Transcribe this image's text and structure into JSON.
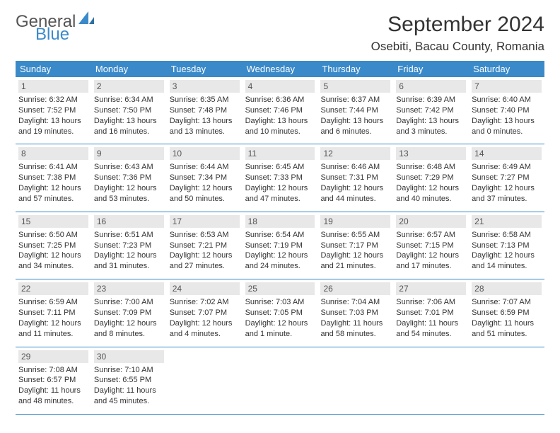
{
  "logo": {
    "text_general": "General",
    "text_blue": "Blue"
  },
  "title": {
    "month": "September 2024",
    "location": "Osebiti, Bacau County, Romania"
  },
  "colors": {
    "header_bg": "#3a8ac9",
    "daynum_bg": "#e8e8e8",
    "text": "#333333"
  },
  "weekdays": [
    "Sunday",
    "Monday",
    "Tuesday",
    "Wednesday",
    "Thursday",
    "Friday",
    "Saturday"
  ],
  "weeks": [
    [
      {
        "n": "1",
        "sr": "Sunrise: 6:32 AM",
        "ss": "Sunset: 7:52 PM",
        "d1": "Daylight: 13 hours",
        "d2": "and 19 minutes."
      },
      {
        "n": "2",
        "sr": "Sunrise: 6:34 AM",
        "ss": "Sunset: 7:50 PM",
        "d1": "Daylight: 13 hours",
        "d2": "and 16 minutes."
      },
      {
        "n": "3",
        "sr": "Sunrise: 6:35 AM",
        "ss": "Sunset: 7:48 PM",
        "d1": "Daylight: 13 hours",
        "d2": "and 13 minutes."
      },
      {
        "n": "4",
        "sr": "Sunrise: 6:36 AM",
        "ss": "Sunset: 7:46 PM",
        "d1": "Daylight: 13 hours",
        "d2": "and 10 minutes."
      },
      {
        "n": "5",
        "sr": "Sunrise: 6:37 AM",
        "ss": "Sunset: 7:44 PM",
        "d1": "Daylight: 13 hours",
        "d2": "and 6 minutes."
      },
      {
        "n": "6",
        "sr": "Sunrise: 6:39 AM",
        "ss": "Sunset: 7:42 PM",
        "d1": "Daylight: 13 hours",
        "d2": "and 3 minutes."
      },
      {
        "n": "7",
        "sr": "Sunrise: 6:40 AM",
        "ss": "Sunset: 7:40 PM",
        "d1": "Daylight: 13 hours",
        "d2": "and 0 minutes."
      }
    ],
    [
      {
        "n": "8",
        "sr": "Sunrise: 6:41 AM",
        "ss": "Sunset: 7:38 PM",
        "d1": "Daylight: 12 hours",
        "d2": "and 57 minutes."
      },
      {
        "n": "9",
        "sr": "Sunrise: 6:43 AM",
        "ss": "Sunset: 7:36 PM",
        "d1": "Daylight: 12 hours",
        "d2": "and 53 minutes."
      },
      {
        "n": "10",
        "sr": "Sunrise: 6:44 AM",
        "ss": "Sunset: 7:34 PM",
        "d1": "Daylight: 12 hours",
        "d2": "and 50 minutes."
      },
      {
        "n": "11",
        "sr": "Sunrise: 6:45 AM",
        "ss": "Sunset: 7:33 PM",
        "d1": "Daylight: 12 hours",
        "d2": "and 47 minutes."
      },
      {
        "n": "12",
        "sr": "Sunrise: 6:46 AM",
        "ss": "Sunset: 7:31 PM",
        "d1": "Daylight: 12 hours",
        "d2": "and 44 minutes."
      },
      {
        "n": "13",
        "sr": "Sunrise: 6:48 AM",
        "ss": "Sunset: 7:29 PM",
        "d1": "Daylight: 12 hours",
        "d2": "and 40 minutes."
      },
      {
        "n": "14",
        "sr": "Sunrise: 6:49 AM",
        "ss": "Sunset: 7:27 PM",
        "d1": "Daylight: 12 hours",
        "d2": "and 37 minutes."
      }
    ],
    [
      {
        "n": "15",
        "sr": "Sunrise: 6:50 AM",
        "ss": "Sunset: 7:25 PM",
        "d1": "Daylight: 12 hours",
        "d2": "and 34 minutes."
      },
      {
        "n": "16",
        "sr": "Sunrise: 6:51 AM",
        "ss": "Sunset: 7:23 PM",
        "d1": "Daylight: 12 hours",
        "d2": "and 31 minutes."
      },
      {
        "n": "17",
        "sr": "Sunrise: 6:53 AM",
        "ss": "Sunset: 7:21 PM",
        "d1": "Daylight: 12 hours",
        "d2": "and 27 minutes."
      },
      {
        "n": "18",
        "sr": "Sunrise: 6:54 AM",
        "ss": "Sunset: 7:19 PM",
        "d1": "Daylight: 12 hours",
        "d2": "and 24 minutes."
      },
      {
        "n": "19",
        "sr": "Sunrise: 6:55 AM",
        "ss": "Sunset: 7:17 PM",
        "d1": "Daylight: 12 hours",
        "d2": "and 21 minutes."
      },
      {
        "n": "20",
        "sr": "Sunrise: 6:57 AM",
        "ss": "Sunset: 7:15 PM",
        "d1": "Daylight: 12 hours",
        "d2": "and 17 minutes."
      },
      {
        "n": "21",
        "sr": "Sunrise: 6:58 AM",
        "ss": "Sunset: 7:13 PM",
        "d1": "Daylight: 12 hours",
        "d2": "and 14 minutes."
      }
    ],
    [
      {
        "n": "22",
        "sr": "Sunrise: 6:59 AM",
        "ss": "Sunset: 7:11 PM",
        "d1": "Daylight: 12 hours",
        "d2": "and 11 minutes."
      },
      {
        "n": "23",
        "sr": "Sunrise: 7:00 AM",
        "ss": "Sunset: 7:09 PM",
        "d1": "Daylight: 12 hours",
        "d2": "and 8 minutes."
      },
      {
        "n": "24",
        "sr": "Sunrise: 7:02 AM",
        "ss": "Sunset: 7:07 PM",
        "d1": "Daylight: 12 hours",
        "d2": "and 4 minutes."
      },
      {
        "n": "25",
        "sr": "Sunrise: 7:03 AM",
        "ss": "Sunset: 7:05 PM",
        "d1": "Daylight: 12 hours",
        "d2": "and 1 minute."
      },
      {
        "n": "26",
        "sr": "Sunrise: 7:04 AM",
        "ss": "Sunset: 7:03 PM",
        "d1": "Daylight: 11 hours",
        "d2": "and 58 minutes."
      },
      {
        "n": "27",
        "sr": "Sunrise: 7:06 AM",
        "ss": "Sunset: 7:01 PM",
        "d1": "Daylight: 11 hours",
        "d2": "and 54 minutes."
      },
      {
        "n": "28",
        "sr": "Sunrise: 7:07 AM",
        "ss": "Sunset: 6:59 PM",
        "d1": "Daylight: 11 hours",
        "d2": "and 51 minutes."
      }
    ],
    [
      {
        "n": "29",
        "sr": "Sunrise: 7:08 AM",
        "ss": "Sunset: 6:57 PM",
        "d1": "Daylight: 11 hours",
        "d2": "and 48 minutes."
      },
      {
        "n": "30",
        "sr": "Sunrise: 7:10 AM",
        "ss": "Sunset: 6:55 PM",
        "d1": "Daylight: 11 hours",
        "d2": "and 45 minutes."
      },
      null,
      null,
      null,
      null,
      null
    ]
  ]
}
